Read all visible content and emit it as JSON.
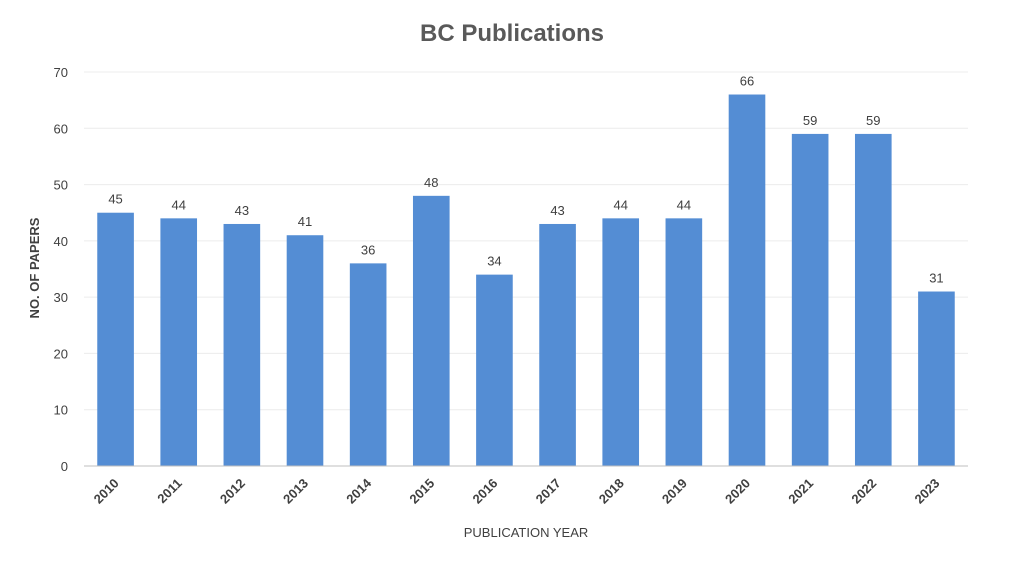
{
  "chart_data": {
    "type": "bar",
    "title": "BC Publications",
    "xlabel": "PUBLICATION YEAR",
    "ylabel": "NO. OF PAPERS",
    "categories": [
      "2010",
      "2011",
      "2012",
      "2013",
      "2014",
      "2015",
      "2016",
      "2017",
      "2018",
      "2019",
      "2020",
      "2021",
      "2022",
      "2023"
    ],
    "values": [
      45,
      44,
      43,
      41,
      36,
      48,
      34,
      43,
      44,
      44,
      66,
      59,
      59,
      31
    ],
    "ylim": [
      0,
      70
    ],
    "yticks": [
      0,
      10,
      20,
      30,
      40,
      50,
      60,
      70
    ],
    "grid": true,
    "bar_color": "#548dd4"
  }
}
